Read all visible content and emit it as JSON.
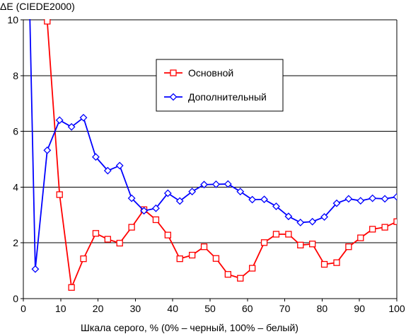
{
  "chart_data": {
    "type": "line",
    "ylabel": "ΔE (CIEDE2000)",
    "xlabel": "Шкала серого, % (0% – черный, 100% – белый)",
    "xlim": [
      0,
      100
    ],
    "ylim": [
      0,
      10
    ],
    "xticks": [
      "0",
      "10",
      "20",
      "30",
      "40",
      "50",
      "60",
      "70",
      "80",
      "90",
      "100"
    ],
    "yticks": [
      "0",
      "2",
      "4",
      "6",
      "8",
      "10"
    ],
    "grid": "horizontal",
    "legend": {
      "placement": "top-center",
      "entries": [
        "Основной",
        "Дополнительный"
      ]
    },
    "series": [
      {
        "name": "Основной",
        "color": "#ff0000",
        "marker": "square",
        "points": [
          {
            "x": 3.2,
            "y": 17.0
          },
          {
            "x": 6.4,
            "y": 9.95
          },
          {
            "x": 9.7,
            "y": 3.73
          },
          {
            "x": 12.9,
            "y": 0.4
          },
          {
            "x": 16.1,
            "y": 1.43
          },
          {
            "x": 19.4,
            "y": 2.34
          },
          {
            "x": 22.6,
            "y": 2.13
          },
          {
            "x": 25.8,
            "y": 1.99
          },
          {
            "x": 29.0,
            "y": 2.56
          },
          {
            "x": 32.3,
            "y": 3.19
          },
          {
            "x": 35.5,
            "y": 2.83
          },
          {
            "x": 38.7,
            "y": 2.28
          },
          {
            "x": 41.9,
            "y": 1.43
          },
          {
            "x": 45.2,
            "y": 1.56
          },
          {
            "x": 48.4,
            "y": 1.86
          },
          {
            "x": 51.6,
            "y": 1.44
          },
          {
            "x": 54.8,
            "y": 0.87
          },
          {
            "x": 58.1,
            "y": 0.73
          },
          {
            "x": 61.3,
            "y": 1.09
          },
          {
            "x": 64.5,
            "y": 2.01
          },
          {
            "x": 67.7,
            "y": 2.31
          },
          {
            "x": 71.0,
            "y": 2.31
          },
          {
            "x": 74.2,
            "y": 1.92
          },
          {
            "x": 77.4,
            "y": 1.96
          },
          {
            "x": 80.6,
            "y": 1.23
          },
          {
            "x": 83.9,
            "y": 1.29
          },
          {
            "x": 87.1,
            "y": 1.86
          },
          {
            "x": 90.3,
            "y": 2.18
          },
          {
            "x": 93.5,
            "y": 2.49
          },
          {
            "x": 96.8,
            "y": 2.56
          },
          {
            "x": 100.0,
            "y": 2.76
          }
        ]
      },
      {
        "name": "Дополнительный",
        "color": "#0000ff",
        "marker": "diamond",
        "points": [
          {
            "x": 1.6,
            "y": 11.0
          },
          {
            "x": 3.2,
            "y": 1.06
          },
          {
            "x": 6.4,
            "y": 5.32
          },
          {
            "x": 9.7,
            "y": 6.4
          },
          {
            "x": 12.9,
            "y": 6.16
          },
          {
            "x": 16.1,
            "y": 6.49
          },
          {
            "x": 19.4,
            "y": 5.08
          },
          {
            "x": 22.6,
            "y": 4.59
          },
          {
            "x": 25.8,
            "y": 4.77
          },
          {
            "x": 29.0,
            "y": 3.6
          },
          {
            "x": 32.3,
            "y": 3.15
          },
          {
            "x": 35.5,
            "y": 3.24
          },
          {
            "x": 38.7,
            "y": 3.78
          },
          {
            "x": 41.9,
            "y": 3.5
          },
          {
            "x": 45.2,
            "y": 3.84
          },
          {
            "x": 48.4,
            "y": 4.09
          },
          {
            "x": 51.6,
            "y": 4.1
          },
          {
            "x": 54.8,
            "y": 4.11
          },
          {
            "x": 58.1,
            "y": 3.84
          },
          {
            "x": 61.3,
            "y": 3.55
          },
          {
            "x": 64.5,
            "y": 3.56
          },
          {
            "x": 67.7,
            "y": 3.31
          },
          {
            "x": 71.0,
            "y": 2.95
          },
          {
            "x": 74.2,
            "y": 2.73
          },
          {
            "x": 77.4,
            "y": 2.76
          },
          {
            "x": 80.6,
            "y": 2.93
          },
          {
            "x": 83.9,
            "y": 3.42
          },
          {
            "x": 87.1,
            "y": 3.58
          },
          {
            "x": 90.3,
            "y": 3.51
          },
          {
            "x": 93.5,
            "y": 3.6
          },
          {
            "x": 96.8,
            "y": 3.58
          },
          {
            "x": 100.0,
            "y": 3.65
          }
        ]
      }
    ]
  }
}
